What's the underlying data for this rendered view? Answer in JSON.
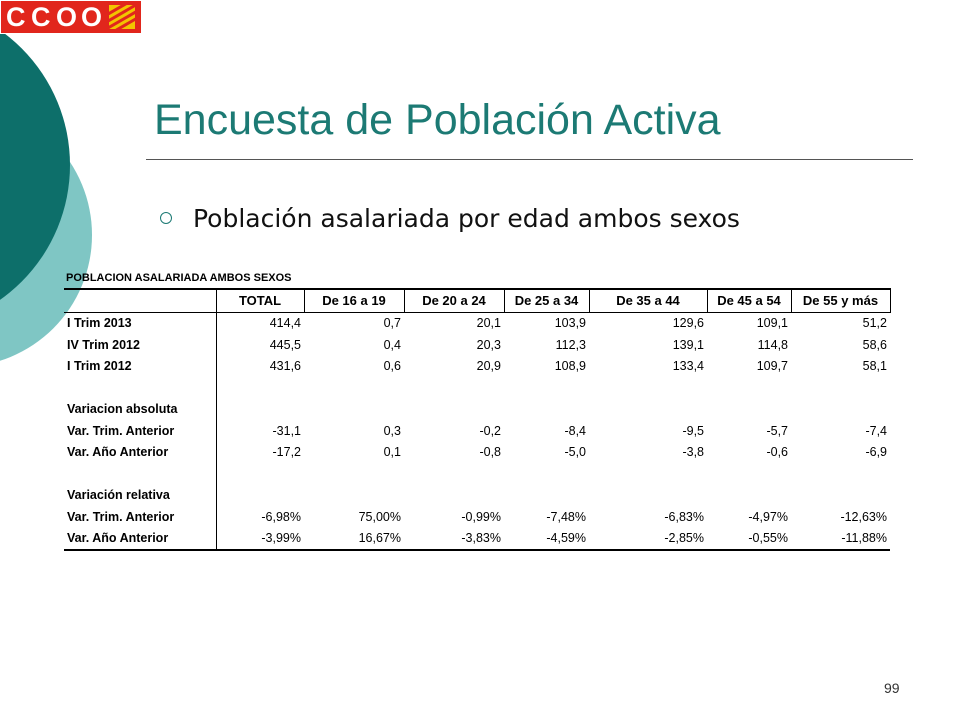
{
  "logo": {
    "text": "CCOO",
    "letters": [
      "C",
      "C",
      "O",
      "O"
    ],
    "colors": {
      "red": "#e1261c",
      "flag_stripe": "#e1261c",
      "flag_bg": "#f2c400"
    }
  },
  "decor": {
    "colors": {
      "dark_teal": "#0d6f6a",
      "light_teal": "#7fc6c4"
    }
  },
  "title": "Encuesta de Población Activa",
  "subtitle": "Población asalariada por edad ambos sexos",
  "table": {
    "title": "POBLACION ASALARIADA AMBOS SEXOS",
    "headers": [
      "",
      "TOTAL",
      "De 16 a 19",
      "De 20 a 24",
      "De 25 a 34",
      "De 35 a 44",
      "De 45 a 54",
      "De 55 y más"
    ],
    "rows": [
      [
        "I Trim 2013",
        "414,4",
        "0,7",
        "20,1",
        "103,9",
        "129,6",
        "109,1",
        "51,2"
      ],
      [
        "IV Trim 2012",
        "445,5",
        "0,4",
        "20,3",
        "112,3",
        "139,1",
        "114,8",
        "58,6"
      ],
      [
        "I Trim 2012",
        "431,6",
        "0,6",
        "20,9",
        "108,9",
        "133,4",
        "109,7",
        "58,1"
      ],
      [
        "",
        "",
        "",
        "",
        "",
        "",
        "",
        ""
      ],
      [
        "Variacion absoluta",
        "",
        "",
        "",
        "",
        "",
        "",
        ""
      ],
      [
        "Var. Trim. Anterior",
        "-31,1",
        "0,3",
        "-0,2",
        "-8,4",
        "-9,5",
        "-5,7",
        "-7,4"
      ],
      [
        "Var. Año Anterior",
        "-17,2",
        "0,1",
        "-0,8",
        "-5,0",
        "-3,8",
        "-0,6",
        "-6,9"
      ],
      [
        "",
        "",
        "",
        "",
        "",
        "",
        "",
        ""
      ],
      [
        "Variación relativa",
        "",
        "",
        "",
        "",
        "",
        "",
        ""
      ],
      [
        "Var. Trim. Anterior",
        "-6,98%",
        "75,00%",
        "-0,99%",
        "-7,48%",
        "-6,83%",
        "-4,97%",
        "-12,63%"
      ],
      [
        "Var. Año Anterior",
        "-3,99%",
        "16,67%",
        "-3,83%",
        "-4,59%",
        "-2,85%",
        "-0,55%",
        "-11,88%"
      ]
    ]
  },
  "page_number": "99",
  "icons": {
    "bullet": "hollow-circle-bullet-icon",
    "logo_flag": "aragon-flag-icon"
  }
}
